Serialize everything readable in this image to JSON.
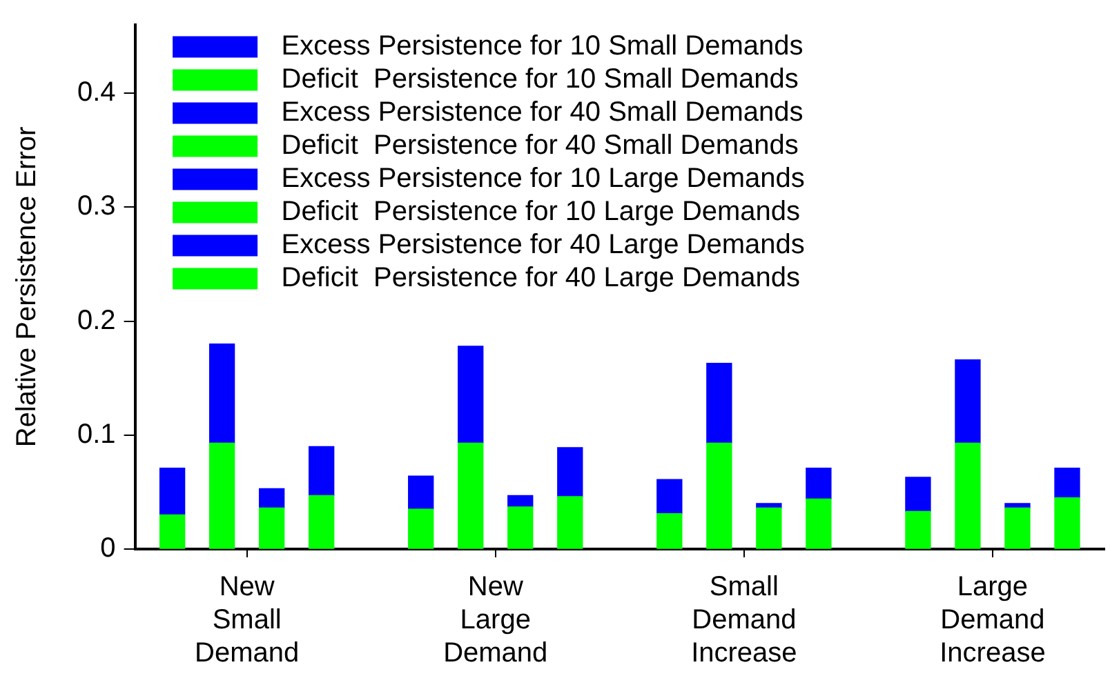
{
  "chart_data": {
    "type": "bar",
    "stacked": true,
    "ylabel": "Relative Persistence Error",
    "categories": [
      null,
      null,
      null,
      null,
      "New Small Demand",
      null,
      null,
      null,
      null,
      null,
      null,
      null,
      null,
      null,
      "New Large Demand",
      null,
      null,
      null,
      null,
      null,
      null,
      null,
      null,
      null,
      "Small Demand Increase",
      null,
      null,
      null,
      null,
      null,
      null,
      null,
      null,
      null,
      "Large Demand Increase",
      null,
      null,
      null,
      null
    ],
    "series": [
      {
        "name": "Deficit  Persistence for 10 Small Demands",
        "color": "#00ff00",
        "values": [
          null,
          0.03,
          null,
          null,
          null,
          null,
          null,
          null,
          null,
          null,
          null,
          0.035,
          null,
          null,
          null,
          null,
          null,
          null,
          null,
          null,
          null,
          0.031,
          null,
          null,
          null,
          null,
          null,
          null,
          null,
          null,
          null,
          0.033,
          null,
          null,
          null,
          null,
          null,
          null,
          null
        ]
      },
      {
        "name": "Excess Persistence for 10 Small Demands",
        "color": "#0000ff",
        "values": [
          null,
          0.041,
          null,
          null,
          null,
          null,
          null,
          null,
          null,
          null,
          null,
          0.029,
          null,
          null,
          null,
          null,
          null,
          null,
          null,
          null,
          null,
          0.03,
          null,
          null,
          null,
          null,
          null,
          null,
          null,
          null,
          null,
          0.03,
          null,
          null,
          null,
          null,
          null,
          null,
          null
        ]
      },
      {
        "name": "Deficit  Persistence for 40 Small Demands",
        "color": "#00ff00",
        "values": [
          null,
          null,
          null,
          0.093,
          null,
          null,
          null,
          null,
          null,
          null,
          null,
          null,
          null,
          0.093,
          null,
          null,
          null,
          null,
          null,
          null,
          null,
          null,
          null,
          0.093,
          null,
          null,
          null,
          null,
          null,
          null,
          null,
          null,
          null,
          0.093,
          null,
          null,
          null,
          null,
          null
        ]
      },
      {
        "name": "Excess Persistence for 40 Small Demands",
        "color": "#0000ff",
        "values": [
          null,
          null,
          null,
          0.087,
          null,
          null,
          null,
          null,
          null,
          null,
          null,
          null,
          null,
          0.085,
          null,
          null,
          null,
          null,
          null,
          null,
          null,
          null,
          null,
          0.07,
          null,
          null,
          null,
          null,
          null,
          null,
          null,
          null,
          null,
          0.073,
          null,
          null,
          null,
          null,
          null
        ]
      },
      {
        "name": "Deficit  Persistence for 10 Large Demands",
        "color": "#00ff00",
        "values": [
          null,
          null,
          null,
          null,
          null,
          0.036,
          null,
          null,
          null,
          null,
          null,
          null,
          null,
          null,
          null,
          0.037,
          null,
          null,
          null,
          null,
          null,
          null,
          null,
          null,
          null,
          0.036,
          null,
          null,
          null,
          null,
          null,
          null,
          null,
          null,
          null,
          0.036,
          null,
          null,
          null
        ]
      },
      {
        "name": "Excess Persistence for 10 Large Demands",
        "color": "#0000ff",
        "values": [
          null,
          null,
          null,
          null,
          null,
          0.017,
          null,
          null,
          null,
          null,
          null,
          null,
          null,
          null,
          null,
          0.01,
          null,
          null,
          null,
          null,
          null,
          null,
          null,
          null,
          null,
          0.004,
          null,
          null,
          null,
          null,
          null,
          null,
          null,
          null,
          null,
          0.004,
          null,
          null,
          null
        ]
      },
      {
        "name": "Deficit  Persistence for 40 Large Demands",
        "color": "#00ff00",
        "values": [
          null,
          null,
          null,
          null,
          null,
          null,
          null,
          0.047,
          null,
          null,
          null,
          null,
          null,
          null,
          null,
          null,
          null,
          0.046,
          null,
          null,
          null,
          null,
          null,
          null,
          null,
          null,
          null,
          0.044,
          null,
          null,
          null,
          null,
          null,
          null,
          null,
          null,
          null,
          0.045,
          null
        ]
      },
      {
        "name": "Excess Persistence for 40 Large Demands",
        "color": "#0000ff",
        "values": [
          null,
          null,
          null,
          null,
          null,
          null,
          null,
          0.043,
          null,
          null,
          null,
          null,
          null,
          null,
          null,
          null,
          null,
          0.043,
          null,
          null,
          null,
          null,
          null,
          null,
          null,
          null,
          null,
          0.027,
          null,
          null,
          null,
          null,
          null,
          null,
          null,
          null,
          null,
          0.026,
          null
        ]
      }
    ],
    "ylim": [
      0,
      0.46
    ],
    "yticks": [
      0,
      0.1,
      0.2,
      0.3,
      0.4
    ],
    "grid": false,
    "legend": "top"
  }
}
